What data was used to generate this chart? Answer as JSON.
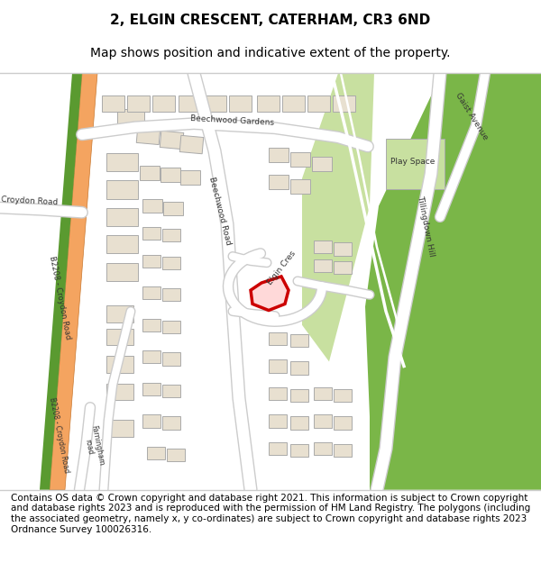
{
  "title_line1": "2, ELGIN CRESCENT, CATERHAM, CR3 6ND",
  "title_line2": "Map shows position and indicative extent of the property.",
  "footer_text": "Contains OS data © Crown copyright and database right 2021. This information is subject to Crown copyright and database rights 2023 and is reproduced with the permission of HM Land Registry. The polygons (including the associated geometry, namely x, y co-ordinates) are subject to Crown copyright and database rights 2023 Ordnance Survey 100026316.",
  "bg_color": "#f0ede8",
  "road_color": "#ffffff",
  "road_outline": "#cccccc",
  "main_road_color": "#f4a460",
  "main_road_outline": "#c87830",
  "green_area_color": "#7ab648",
  "light_green_color": "#c8e0a0",
  "building_color": "#e8e0d0",
  "building_outline": "#aaaaaa",
  "highlight_color": "#cc0000",
  "path_color": "#ffffff",
  "title_fontsize": 11,
  "footer_fontsize": 7.5
}
